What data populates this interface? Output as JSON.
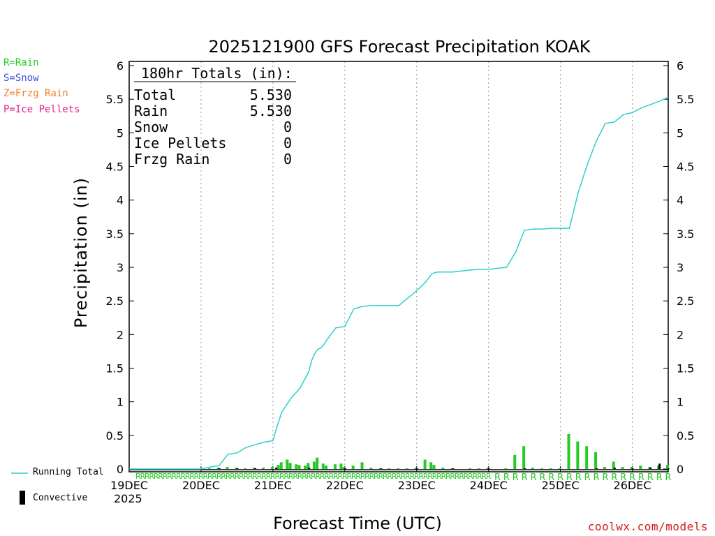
{
  "chart_data": {
    "type": "bar",
    "title": "2025121900 GFS Forecast Precipitation KOAK",
    "xlabel": "Forecast Time (UTC)",
    "ylabel": "Precipitation (in)",
    "ylim": [
      0,
      6
    ],
    "y_ticks": [
      "0",
      "0.5",
      "1",
      "1.5",
      "2",
      "2.5",
      "3",
      "3.5",
      "4",
      "4.5",
      "5",
      "5.5",
      "6"
    ],
    "x_range_hours": [
      0,
      180
    ],
    "x_ticks": [
      {
        "hour": 0,
        "label": "19DEC"
      },
      {
        "hour": 24,
        "label": "20DEC"
      },
      {
        "hour": 48,
        "label": "21DEC"
      },
      {
        "hour": 72,
        "label": "22DEC"
      },
      {
        "hour": 96,
        "label": "23DEC"
      },
      {
        "hour": 120,
        "label": "24DEC"
      },
      {
        "hour": 144,
        "label": "25DEC"
      },
      {
        "hour": 168,
        "label": "26DEC"
      }
    ],
    "start_year": "2025",
    "totals": {
      "heading": "180hr Totals (in):",
      "rows": [
        {
          "label": "Total",
          "value": "5.530"
        },
        {
          "label": "Rain",
          "value": "5.530"
        },
        {
          "label": "Snow",
          "value": "0"
        },
        {
          "label": "Ice Pellets",
          "value": "0"
        },
        {
          "label": "Frzg Rain",
          "value": "0"
        }
      ]
    },
    "running_total": {
      "name": "Running Total",
      "color": "#2ecfcf",
      "hours": [
        0,
        24,
        27,
        30,
        33,
        36,
        39,
        42,
        45,
        48,
        49,
        51,
        54,
        57,
        60,
        61,
        62,
        63,
        64,
        65,
        66,
        69,
        72,
        75,
        78,
        81,
        84,
        87,
        90,
        96,
        99,
        101,
        102,
        103,
        105,
        108,
        114,
        117,
        120,
        126,
        129,
        132,
        135,
        138,
        141,
        144,
        147,
        150,
        153,
        156,
        159,
        162,
        165,
        168,
        171,
        174,
        177,
        180
      ],
      "values": [
        0,
        0,
        0.03,
        0.05,
        0.22,
        0.24,
        0.32,
        0.36,
        0.4,
        0.42,
        0.58,
        0.85,
        1.05,
        1.2,
        1.45,
        1.62,
        1.72,
        1.78,
        1.8,
        1.85,
        1.92,
        2.1,
        2.12,
        2.38,
        2.42,
        2.43,
        2.43,
        2.43,
        2.43,
        2.65,
        2.78,
        2.9,
        2.92,
        2.93,
        2.93,
        2.93,
        2.96,
        2.97,
        2.97,
        3.0,
        3.22,
        3.55,
        3.57,
        3.57,
        3.58,
        3.58,
        3.58,
        4.12,
        4.53,
        4.88,
        5.14,
        5.16,
        5.27,
        5.3,
        5.37,
        5.42,
        5.47,
        5.53
      ]
    },
    "series": [
      {
        "name": "Rain",
        "symbol": "R",
        "color": "#22cc22",
        "hours": [
          27,
          30,
          33,
          36,
          39,
          42,
          45,
          48,
          50,
          51,
          53,
          54,
          56,
          57,
          59,
          60,
          62,
          63,
          65,
          66,
          69,
          71,
          72,
          75,
          78,
          81,
          84,
          87,
          90,
          93,
          96,
          99,
          101,
          102,
          105,
          108,
          114,
          117,
          120,
          126,
          129,
          132,
          135,
          138,
          141,
          144,
          147,
          150,
          153,
          156,
          159,
          162,
          165,
          168,
          171,
          174,
          177,
          180
        ],
        "values": [
          0.01,
          0.02,
          0.03,
          0.02,
          0.01,
          0.02,
          0.02,
          0.03,
          0.06,
          0.1,
          0.14,
          0.09,
          0.07,
          0.06,
          0.05,
          0.09,
          0.11,
          0.17,
          0.08,
          0.05,
          0.07,
          0.08,
          0.03,
          0.05,
          0.1,
          0.02,
          0.01,
          0.01,
          0.01,
          0.01,
          0.02,
          0.14,
          0.1,
          0.06,
          0.02,
          0.01,
          0.01,
          0.01,
          0.02,
          0.01,
          0.21,
          0.34,
          0.02,
          0.01,
          0.01,
          0.01,
          0.52,
          0.41,
          0.34,
          0.25,
          0.03,
          0.11,
          0.03,
          0.03,
          0.05,
          0.03,
          0.05,
          0.06
        ]
      },
      {
        "name": "Convective",
        "color": "#000000",
        "hours": [
          30,
          36,
          42,
          49,
          60,
          72,
          84,
          96,
          108,
          120,
          132,
          156,
          162,
          168,
          174,
          177,
          180
        ],
        "values": [
          0.01,
          0.01,
          0.01,
          0.02,
          0.02,
          0.01,
          0.01,
          0.01,
          0.01,
          0.01,
          0.01,
          0.01,
          0.02,
          0.01,
          0.02,
          0.08,
          0.01
        ]
      }
    ],
    "type_markers_end_hour": 180,
    "legend_types": [
      {
        "text": "R=Rain",
        "color": "#22cc22"
      },
      {
        "text": "S=Snow",
        "color": "#3a4fe0"
      },
      {
        "text": "Z=Frzg Rain",
        "color": "#f07f2a"
      },
      {
        "text": "P=Ice Pellets",
        "color": "#e0228a"
      }
    ],
    "legend_bottom": {
      "running": "Running Total",
      "convective": "Convective"
    },
    "credit": "coolwx.com/models"
  }
}
